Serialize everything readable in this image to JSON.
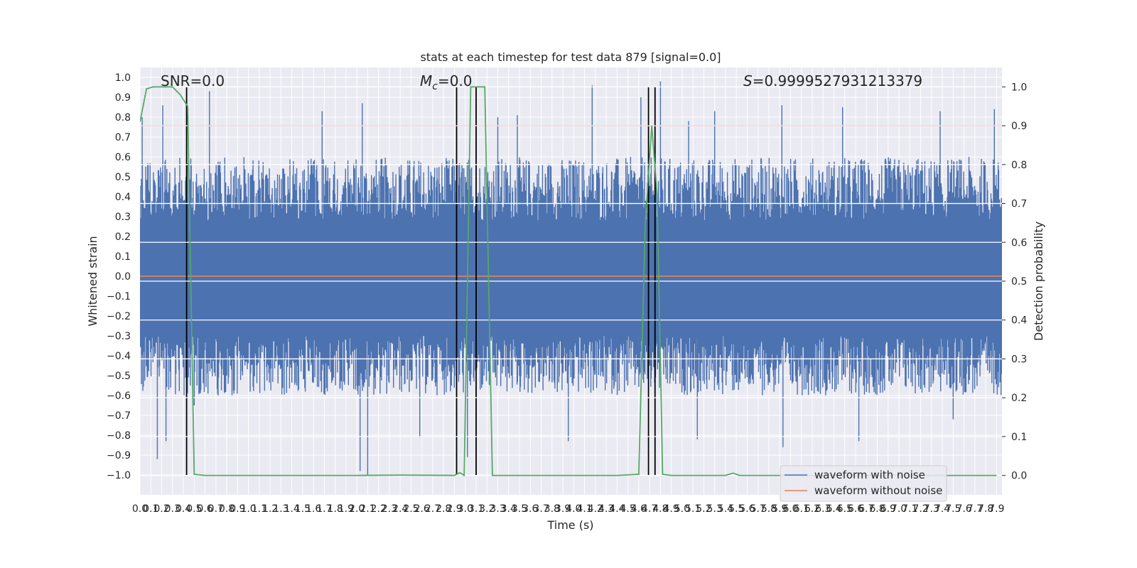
{
  "chart_data": {
    "type": "line",
    "title": "stats at each timestep for test data 879 [signal=0.0]",
    "xlabel": "Time (s)",
    "ylabel_left": "Whitened strain",
    "ylabel_right": "Detection probability",
    "xlim": [
      0.0,
      7.95
    ],
    "ylim_left": [
      -1.1,
      1.05
    ],
    "ylim_right": [
      -0.05,
      1.05
    ],
    "x_ticks": [
      "0.0",
      "0.1",
      "0.2",
      "0.3",
      "0.4",
      "0.5",
      "0.6",
      "0.7",
      "0.8",
      "0.9",
      "1.0",
      "1.1",
      "1.2",
      "1.3",
      "1.4",
      "1.5",
      "1.6",
      "1.7",
      "1.8",
      "1.9",
      "2.0",
      "2.1",
      "2.2",
      "2.3",
      "2.4",
      "2.5",
      "2.6",
      "2.7",
      "2.8",
      "2.9",
      "3.0",
      "3.1",
      "3.2",
      "3.3",
      "3.4",
      "3.5",
      "3.6",
      "3.7",
      "3.8",
      "3.9",
      "4.0",
      "4.1",
      "4.2",
      "4.3",
      "4.4",
      "4.5",
      "4.6",
      "4.7",
      "4.8",
      "4.9",
      "5.0",
      "5.1",
      "5.2",
      "5.3",
      "5.4",
      "5.5",
      "5.6",
      "5.7",
      "5.8",
      "5.9",
      "6.0",
      "6.1",
      "6.2",
      "6.3",
      "6.4",
      "6.5",
      "6.6",
      "6.7",
      "6.8",
      "6.9",
      "7.0",
      "7.1",
      "7.2",
      "7.3",
      "7.4",
      "7.5",
      "7.6",
      "7.7",
      "7.8",
      "7.9"
    ],
    "y_ticks_left": [
      "1.0",
      "0.9",
      "0.8",
      "0.7",
      "0.6",
      "0.5",
      "0.4",
      "0.3",
      "0.2",
      "0.1",
      "0.0",
      "-0.1",
      "-0.2",
      "-0.3",
      "-0.4",
      "-0.5",
      "-0.6",
      "-0.7",
      "-0.8",
      "-0.9",
      "-1.0"
    ],
    "y_ticks_right": [
      "1.0",
      "0.9",
      "0.8",
      "0.7",
      "0.6",
      "0.5",
      "0.4",
      "0.3",
      "0.2",
      "0.1",
      "0.0"
    ],
    "annotations": {
      "snr": "SNR=0.0",
      "mc_symbol": "M",
      "mc_sub": "c",
      "mc_value": "=0.0",
      "s_symbol": "S",
      "s_value": "=0.9999527931213379"
    },
    "series": [
      {
        "name": "waveform with noise",
        "axis": "left",
        "color": "#4c72b0",
        "peaks_hi": [
          [
            0.02,
            0.8
          ],
          [
            0.21,
            0.86
          ],
          [
            0.64,
            0.93
          ],
          [
            1.68,
            0.83
          ],
          [
            2.05,
            0.87
          ],
          [
            3.3,
            0.8
          ],
          [
            3.48,
            0.81
          ],
          [
            4.17,
            0.96
          ],
          [
            4.62,
            0.9
          ],
          [
            4.8,
            0.98
          ],
          [
            5.06,
            0.78
          ],
          [
            5.3,
            0.83
          ],
          [
            5.92,
            0.86
          ],
          [
            6.48,
            0.85
          ],
          [
            7.38,
            0.83
          ],
          [
            7.88,
            0.84
          ]
        ],
        "peaks_lo": [
          [
            0.16,
            -0.92
          ],
          [
            0.24,
            -0.83
          ],
          [
            0.5,
            -0.65
          ],
          [
            2.03,
            -0.98
          ],
          [
            2.1,
            -1.0
          ],
          [
            2.58,
            -0.81
          ],
          [
            3.02,
            -0.91
          ],
          [
            3.95,
            -0.83
          ],
          [
            5.14,
            -0.82
          ],
          [
            5.93,
            -0.86
          ],
          [
            6.63,
            -0.83
          ],
          [
            7.5,
            -0.72
          ]
        ]
      },
      {
        "name": "waveform without noise",
        "axis": "left",
        "color": "#dd8452",
        "constant": 0.0
      },
      {
        "name": "Detection probability",
        "axis": "right",
        "color": "#55a868",
        "x": [
          0.0,
          0.06,
          0.12,
          0.25,
          0.3,
          0.37,
          0.44,
          0.5,
          0.6,
          1.0,
          2.0,
          2.4,
          2.9,
          2.95,
          2.99,
          3.05,
          3.13,
          3.18,
          3.25,
          3.6,
          4.4,
          4.6,
          4.66,
          4.72,
          4.77,
          4.82,
          4.9,
          5.4,
          5.47,
          5.53,
          5.6,
          6.5,
          7.9
        ],
        "y": [
          0.91,
          0.995,
          1.0,
          1.0,
          1.0,
          0.98,
          0.95,
          0.003,
          0.0,
          0.0,
          0.0,
          0.001,
          0.0,
          0.007,
          0.0,
          1.0,
          1.0,
          1.0,
          0.0,
          0.0,
          0.0,
          0.003,
          0.65,
          0.9,
          0.72,
          0.003,
          0.0,
          0.0,
          0.006,
          0.0,
          0.0,
          0.0,
          0.0
        ]
      }
    ],
    "threshold": {
      "axis": "right",
      "value": 0.9,
      "color": "#c44e52"
    },
    "vlines_x": [
      0.43,
      2.92,
      3.1,
      4.69,
      4.75
    ],
    "legend": {
      "placement": "lower-right",
      "entries": [
        "waveform with noise",
        "waveform without noise"
      ]
    },
    "grid": true
  }
}
